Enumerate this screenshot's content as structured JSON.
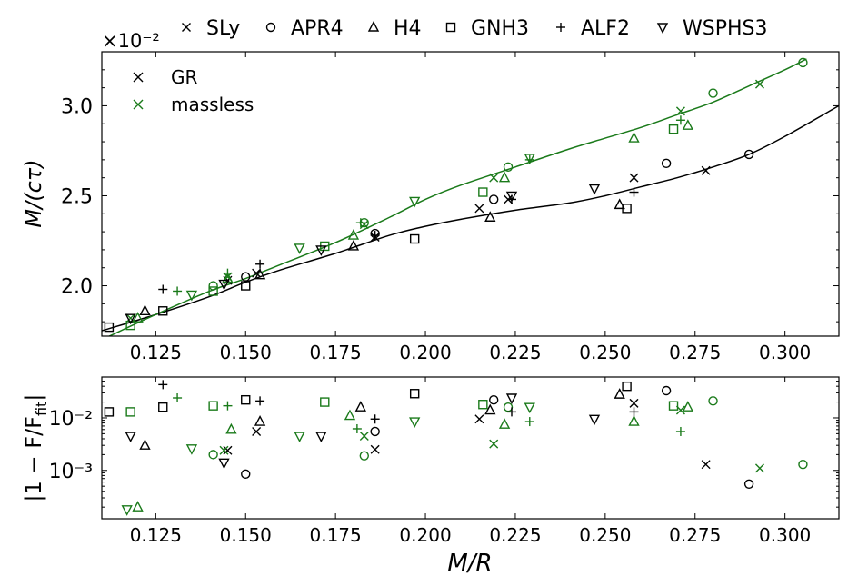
{
  "colors": {
    "gr": "#000000",
    "massless": "#1a7a1a"
  },
  "legend_top": [
    {
      "marker": "x",
      "label": "SLy"
    },
    {
      "marker": "o",
      "label": "APR4"
    },
    {
      "marker": "^",
      "label": "H4"
    },
    {
      "marker": "s",
      "label": "GNH3"
    },
    {
      "marker": "+",
      "label": "ALF2"
    },
    {
      "marker": "v",
      "label": "WSPHS3"
    }
  ],
  "legend_inner": [
    {
      "label": "GR",
      "color": "#000000"
    },
    {
      "label": "massless",
      "color": "#1a7a1a"
    }
  ],
  "chart_data": [
    {
      "type": "scatter",
      "title": "",
      "offset_label": "×10⁻²",
      "xlabel": "",
      "ylabel": "M/(cτ)",
      "xlim": [
        0.11,
        0.315
      ],
      "ylim": [
        1.72,
        3.3
      ],
      "xticks": [
        0.125,
        0.15,
        0.175,
        0.2,
        0.225,
        0.25,
        0.275,
        0.3
      ],
      "xtick_labels": [
        "0.125",
        "0.150",
        "0.175",
        "0.200",
        "0.225",
        "0.250",
        "0.275",
        "0.300"
      ],
      "yticks": [
        2.0,
        2.5,
        3.0
      ],
      "ytick_labels": [
        "2.0",
        "2.5",
        "3.0"
      ],
      "fits": [
        {
          "name": "GR",
          "color": "#000000",
          "points": [
            [
              0.11,
              1.75
            ],
            [
              0.125,
              1.84
            ],
            [
              0.14,
              1.94
            ],
            [
              0.15,
              2.02
            ],
            [
              0.16,
              2.09
            ],
            [
              0.175,
              2.18
            ],
            [
              0.19,
              2.28
            ],
            [
              0.2,
              2.33
            ],
            [
              0.21,
              2.37
            ],
            [
              0.225,
              2.42
            ],
            [
              0.24,
              2.46
            ],
            [
              0.25,
              2.5
            ],
            [
              0.26,
              2.55
            ],
            [
              0.27,
              2.6
            ],
            [
              0.28,
              2.66
            ],
            [
              0.29,
              2.73
            ],
            [
              0.3,
              2.83
            ],
            [
              0.315,
              3.0
            ]
          ]
        },
        {
          "name": "massless",
          "color": "#1a7a1a",
          "points": [
            [
              0.11,
              1.7
            ],
            [
              0.125,
              1.84
            ],
            [
              0.14,
              1.97
            ],
            [
              0.15,
              2.04
            ],
            [
              0.16,
              2.12
            ],
            [
              0.175,
              2.24
            ],
            [
              0.19,
              2.38
            ],
            [
              0.2,
              2.48
            ],
            [
              0.21,
              2.56
            ],
            [
              0.225,
              2.66
            ],
            [
              0.24,
              2.76
            ],
            [
              0.25,
              2.82
            ],
            [
              0.26,
              2.88
            ],
            [
              0.27,
              2.95
            ],
            [
              0.28,
              3.02
            ],
            [
              0.29,
              3.11
            ],
            [
              0.3,
              3.2
            ],
            [
              0.306,
              3.26
            ]
          ]
        }
      ],
      "series": [
        {
          "name": "SLy (GR)",
          "marker": "x",
          "color": "#000000",
          "points": [
            [
              0.145,
              2.03
            ],
            [
              0.153,
              2.07
            ],
            [
              0.186,
              2.27
            ],
            [
              0.215,
              2.43
            ],
            [
              0.223,
              2.48
            ],
            [
              0.258,
              2.6
            ],
            [
              0.278,
              2.64
            ]
          ]
        },
        {
          "name": "SLy (massless)",
          "marker": "x",
          "color": "#1a7a1a",
          "points": [
            [
              0.118,
              1.82
            ],
            [
              0.145,
              2.05
            ],
            [
              0.183,
              2.34
            ],
            [
              0.219,
              2.6
            ],
            [
              0.271,
              2.97
            ],
            [
              0.293,
              3.12
            ]
          ]
        },
        {
          "name": "APR4 (GR)",
          "marker": "o",
          "color": "#000000",
          "points": [
            [
              0.15,
              2.05
            ],
            [
              0.186,
              2.29
            ],
            [
              0.219,
              2.48
            ],
            [
              0.267,
              2.68
            ],
            [
              0.29,
              2.73
            ]
          ]
        },
        {
          "name": "APR4 (massless)",
          "marker": "o",
          "color": "#1a7a1a",
          "points": [
            [
              0.141,
              2.0
            ],
            [
              0.183,
              2.35
            ],
            [
              0.223,
              2.66
            ],
            [
              0.28,
              3.07
            ],
            [
              0.305,
              3.24
            ]
          ]
        },
        {
          "name": "H4 (GR)",
          "marker": "^",
          "color": "#000000",
          "points": [
            [
              0.122,
              1.86
            ],
            [
              0.154,
              2.06
            ],
            [
              0.18,
              2.22
            ],
            [
              0.218,
              2.38
            ],
            [
              0.254,
              2.45
            ]
          ]
        },
        {
          "name": "H4 (massless)",
          "marker": "^",
          "color": "#1a7a1a",
          "points": [
            [
              0.12,
              1.82
            ],
            [
              0.145,
              2.04
            ],
            [
              0.18,
              2.28
            ],
            [
              0.222,
              2.6
            ],
            [
              0.258,
              2.82
            ],
            [
              0.273,
              2.89
            ]
          ]
        },
        {
          "name": "GNH3 (GR)",
          "marker": "s",
          "color": "#000000",
          "points": [
            [
              0.112,
              1.77
            ],
            [
              0.127,
              1.86
            ],
            [
              0.15,
              2.0
            ],
            [
              0.197,
              2.26
            ],
            [
              0.256,
              2.43
            ]
          ]
        },
        {
          "name": "GNH3 (massless)",
          "marker": "s",
          "color": "#1a7a1a",
          "points": [
            [
              0.118,
              1.78
            ],
            [
              0.141,
              1.97
            ],
            [
              0.172,
              2.22
            ],
            [
              0.216,
              2.52
            ],
            [
              0.269,
              2.87
            ]
          ]
        },
        {
          "name": "ALF2 (GR)",
          "marker": "+",
          "color": "#000000",
          "points": [
            [
              0.127,
              1.98
            ],
            [
              0.154,
              2.12
            ],
            [
              0.186,
              2.28
            ],
            [
              0.224,
              2.48
            ],
            [
              0.258,
              2.52
            ]
          ]
        },
        {
          "name": "ALF2 (massless)",
          "marker": "+",
          "color": "#1a7a1a",
          "points": [
            [
              0.131,
              1.97
            ],
            [
              0.145,
              2.07
            ],
            [
              0.182,
              2.35
            ],
            [
              0.229,
              2.7
            ],
            [
              0.271,
              2.92
            ]
          ]
        },
        {
          "name": "WSPHS3 (GR)",
          "marker": "v",
          "color": "#000000",
          "points": [
            [
              0.118,
              1.82
            ],
            [
              0.144,
              2.01
            ],
            [
              0.171,
              2.2
            ],
            [
              0.224,
              2.5
            ],
            [
              0.247,
              2.54
            ]
          ]
        },
        {
          "name": "WSPHS3 (massless)",
          "marker": "v",
          "color": "#1a7a1a",
          "points": [
            [
              0.135,
              1.95
            ],
            [
              0.165,
              2.21
            ],
            [
              0.197,
              2.47
            ],
            [
              0.229,
              2.71
            ]
          ]
        }
      ]
    },
    {
      "type": "scatter",
      "title": "",
      "xlabel": "M/R",
      "ylabel": "|1 − F/F_fit|",
      "yscale": "log",
      "xlim": [
        0.11,
        0.315
      ],
      "ylim": [
        0.00012,
        0.06
      ],
      "xticks": [
        0.125,
        0.15,
        0.175,
        0.2,
        0.225,
        0.25,
        0.275,
        0.3
      ],
      "xtick_labels": [
        "0.125",
        "0.150",
        "0.175",
        "0.200",
        "0.225",
        "0.250",
        "0.275",
        "0.300"
      ],
      "yticks": [
        0.001,
        0.01
      ],
      "ytick_labels": [
        "10⁻³",
        "10⁻²"
      ],
      "series": [
        {
          "name": "SLy (GR)",
          "marker": "x",
          "color": "#000000",
          "points": [
            [
              0.145,
              0.0024
            ],
            [
              0.153,
              0.0055
            ],
            [
              0.186,
              0.0025
            ],
            [
              0.215,
              0.0095
            ],
            [
              0.258,
              0.019
            ],
            [
              0.278,
              0.0013
            ]
          ]
        },
        {
          "name": "SLy (massless)",
          "marker": "x",
          "color": "#1a7a1a",
          "points": [
            [
              0.144,
              0.0024
            ],
            [
              0.183,
              0.0045
            ],
            [
              0.219,
              0.0032
            ],
            [
              0.271,
              0.014
            ],
            [
              0.293,
              0.0011
            ]
          ]
        },
        {
          "name": "APR4 (GR)",
          "marker": "o",
          "color": "#000000",
          "points": [
            [
              0.15,
              0.00085
            ],
            [
              0.186,
              0.0055
            ],
            [
              0.219,
              0.022
            ],
            [
              0.267,
              0.033
            ],
            [
              0.29,
              0.00055
            ]
          ]
        },
        {
          "name": "APR4 (massless)",
          "marker": "o",
          "color": "#1a7a1a",
          "points": [
            [
              0.141,
              0.002
            ],
            [
              0.183,
              0.0019
            ],
            [
              0.223,
              0.016
            ],
            [
              0.28,
              0.021
            ],
            [
              0.305,
              0.0013
            ]
          ]
        },
        {
          "name": "H4 (GR)",
          "marker": "^",
          "color": "#000000",
          "points": [
            [
              0.122,
              0.003
            ],
            [
              0.154,
              0.0085
            ],
            [
              0.182,
              0.016
            ],
            [
              0.218,
              0.014
            ],
            [
              0.254,
              0.028
            ]
          ]
        },
        {
          "name": "H4 (massless)",
          "marker": "^",
          "color": "#1a7a1a",
          "points": [
            [
              0.12,
              0.0002
            ],
            [
              0.146,
              0.006
            ],
            [
              0.179,
              0.011
            ],
            [
              0.222,
              0.0075
            ],
            [
              0.258,
              0.0085
            ],
            [
              0.273,
              0.016
            ]
          ]
        },
        {
          "name": "GNH3 (GR)",
          "marker": "s",
          "color": "#000000",
          "points": [
            [
              0.112,
              0.013
            ],
            [
              0.127,
              0.016
            ],
            [
              0.15,
              0.022
            ],
            [
              0.197,
              0.029
            ],
            [
              0.256,
              0.04
            ]
          ]
        },
        {
          "name": "GNH3 (massless)",
          "marker": "s",
          "color": "#1a7a1a",
          "points": [
            [
              0.118,
              0.013
            ],
            [
              0.141,
              0.017
            ],
            [
              0.172,
              0.02
            ],
            [
              0.216,
              0.018
            ],
            [
              0.269,
              0.017
            ]
          ]
        },
        {
          "name": "ALF2 (GR)",
          "marker": "+",
          "color": "#000000",
          "points": [
            [
              0.127,
              0.043
            ],
            [
              0.154,
              0.021
            ],
            [
              0.186,
              0.0095
            ],
            [
              0.224,
              0.013
            ],
            [
              0.258,
              0.013
            ]
          ]
        },
        {
          "name": "ALF2 (massless)",
          "marker": "+",
          "color": "#1a7a1a",
          "points": [
            [
              0.131,
              0.024
            ],
            [
              0.145,
              0.017
            ],
            [
              0.181,
              0.0062
            ],
            [
              0.229,
              0.0085
            ],
            [
              0.271,
              0.0055
            ]
          ]
        },
        {
          "name": "WSPHS3 (GR)",
          "marker": "v",
          "color": "#000000",
          "points": [
            [
              0.118,
              0.0045
            ],
            [
              0.144,
              0.0014
            ],
            [
              0.171,
              0.0045
            ],
            [
              0.224,
              0.024
            ],
            [
              0.247,
              0.0095
            ]
          ]
        },
        {
          "name": "WSPHS3 (massless)",
          "marker": "v",
          "color": "#1a7a1a",
          "points": [
            [
              0.117,
              0.00018
            ],
            [
              0.135,
              0.0026
            ],
            [
              0.165,
              0.0045
            ],
            [
              0.197,
              0.0085
            ],
            [
              0.229,
              0.016
            ]
          ]
        }
      ]
    }
  ]
}
